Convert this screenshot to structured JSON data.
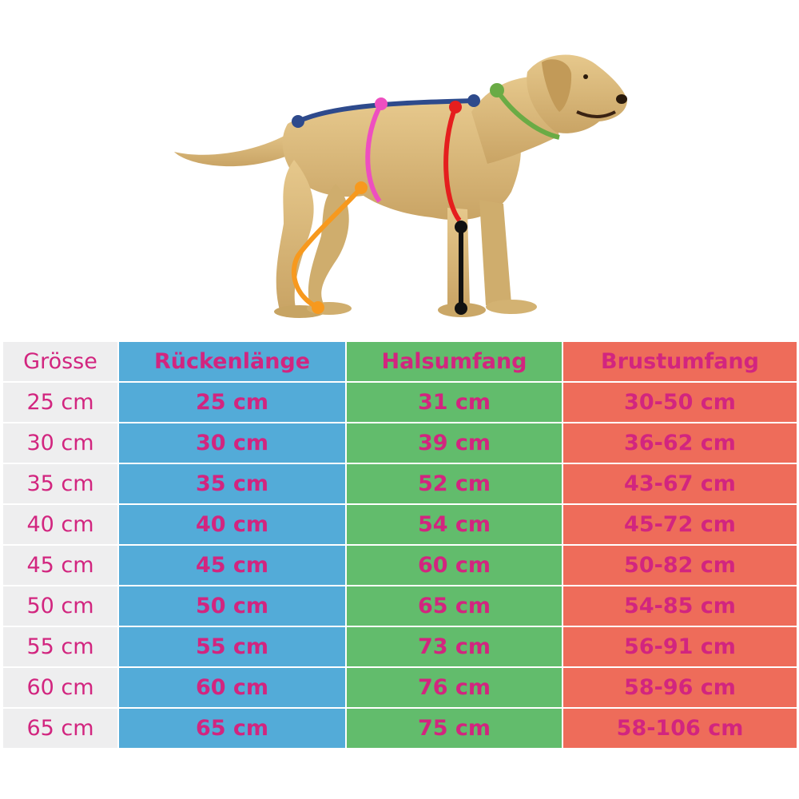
{
  "colors": {
    "label_text": "#d2257f",
    "size_column": "#eeeeef",
    "back_length": "#53abd8",
    "neck_girth": "#62bc6c",
    "chest_girth": "#ee6c5a",
    "dog_fur": "#d8b777",
    "line_back": "#2e4a8c",
    "line_waist": "#ee4fc0",
    "line_chest": "#e51e1e",
    "line_neck": "#6aab45",
    "line_leg": "#f7991e",
    "line_height": "#111111"
  },
  "illustration": {
    "subject": "dog-icon",
    "measurement_lines": [
      "back-length-line",
      "waist-girth-line",
      "chest-girth-line",
      "neck-girth-line",
      "hind-leg-line",
      "height-line"
    ]
  },
  "table": {
    "headers": [
      "Grösse",
      "Rückenlänge",
      "Halsumfang",
      "Brustumfang"
    ],
    "rows": [
      [
        "25 cm",
        "25 cm",
        "31 cm",
        "30-50 cm"
      ],
      [
        "30 cm",
        "30 cm",
        "39 cm",
        "36-62 cm"
      ],
      [
        "35 cm",
        "35 cm",
        "52 cm",
        "43-67 cm"
      ],
      [
        "40 cm",
        "40 cm",
        "54 cm",
        "45-72 cm"
      ],
      [
        "45 cm",
        "45 cm",
        "60 cm",
        "50-82 cm"
      ],
      [
        "50 cm",
        "50 cm",
        "65 cm",
        "54-85 cm"
      ],
      [
        "55 cm",
        "55 cm",
        "73 cm",
        "56-91 cm"
      ],
      [
        "60 cm",
        "60 cm",
        "76 cm",
        "58-96 cm"
      ],
      [
        "65 cm",
        "65 cm",
        "75 cm",
        "58-106 cm"
      ]
    ]
  }
}
